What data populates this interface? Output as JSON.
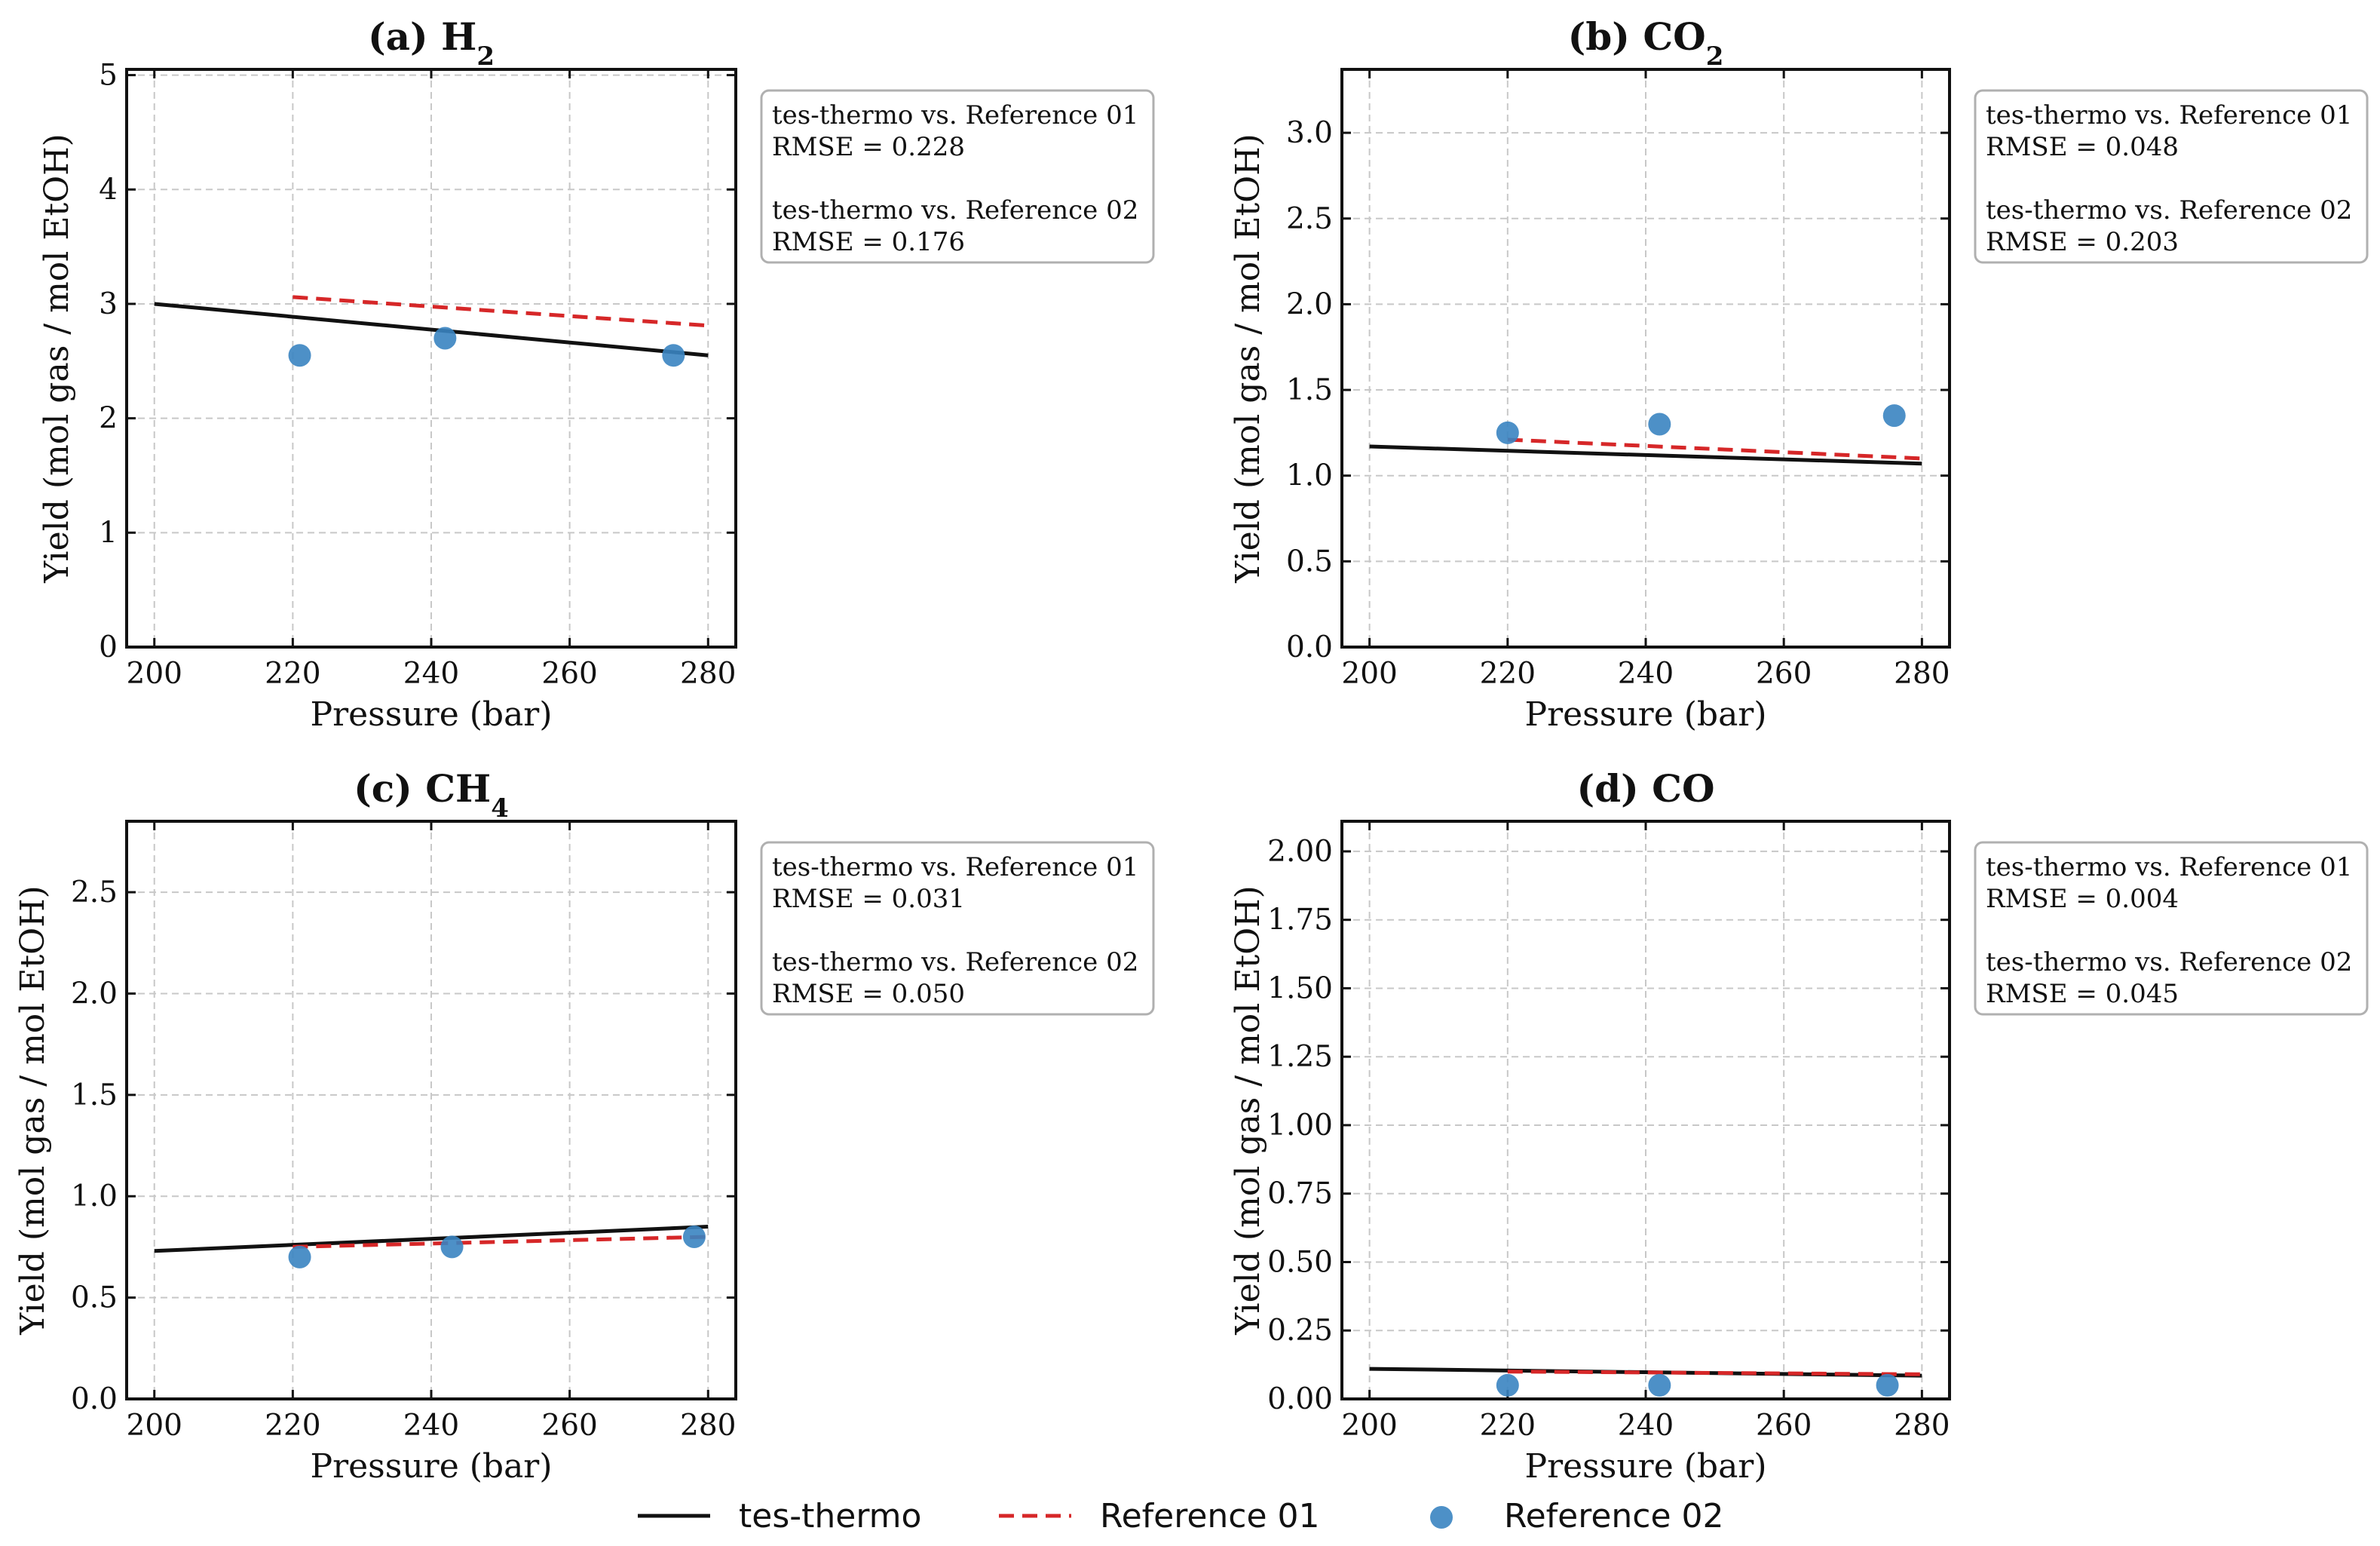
{
  "colors": {
    "model": "#111111",
    "reference_01": "#d62728",
    "reference_02": "#3a84c1",
    "grid": "#c8c8c8",
    "box_border": "#b0b0b0"
  },
  "legend": {
    "model_label": "tes-thermo",
    "ref1_label": "Reference 01",
    "ref2_label": "Reference 02"
  },
  "chart_data": [
    {
      "type": "line",
      "panel": "a",
      "title_prefix": "(a) H",
      "title_sub": "2",
      "title_suffix": "",
      "xlabel": "Pressure (bar)",
      "ylabel": "Yield (mol gas / mol EtOH)",
      "xlim": [
        196,
        284
      ],
      "ylim": [
        0,
        5.05
      ],
      "xticks": [
        200,
        220,
        240,
        260,
        280
      ],
      "yticks": [
        0,
        1,
        2,
        3,
        4,
        5
      ],
      "ytick_labels": [
        "0",
        "1",
        "2",
        "3",
        "4",
        "5"
      ],
      "grid": true,
      "series": [
        {
          "name": "tes-thermo",
          "style": "solid",
          "x": [
            200,
            280
          ],
          "y": [
            3.0,
            2.55
          ]
        },
        {
          "name": "Reference 01",
          "style": "dashed",
          "x": [
            220,
            280
          ],
          "y": [
            3.06,
            2.81
          ]
        },
        {
          "name": "Reference 02",
          "style": "scatter",
          "x": [
            221,
            242,
            275
          ],
          "y": [
            2.55,
            2.7,
            2.55
          ]
        }
      ],
      "annotation": [
        "tes-thermo vs. Reference 01",
        "RMSE = 0.228",
        "",
        "tes-thermo vs. Reference 02",
        "RMSE = 0.176"
      ]
    },
    {
      "type": "line",
      "panel": "b",
      "title_prefix": "(b) CO",
      "title_sub": "2",
      "title_suffix": "",
      "xlabel": "Pressure (bar)",
      "ylabel": "Yield (mol gas / mol EtOH)",
      "xlim": [
        196,
        284
      ],
      "ylim": [
        0,
        3.37
      ],
      "xticks": [
        200,
        220,
        240,
        260,
        280
      ],
      "yticks": [
        0,
        0.5,
        1.0,
        1.5,
        2.0,
        2.5,
        3.0
      ],
      "ytick_labels": [
        "0.0",
        "0.5",
        "1.0",
        "1.5",
        "2.0",
        "2.5",
        "3.0"
      ],
      "grid": true,
      "series": [
        {
          "name": "tes-thermo",
          "style": "solid",
          "x": [
            200,
            280
          ],
          "y": [
            1.17,
            1.07
          ]
        },
        {
          "name": "Reference 01",
          "style": "dashed",
          "x": [
            220,
            280
          ],
          "y": [
            1.21,
            1.1
          ]
        },
        {
          "name": "Reference 02",
          "style": "scatter",
          "x": [
            220,
            242,
            276
          ],
          "y": [
            1.25,
            1.3,
            1.35
          ]
        }
      ],
      "annotation": [
        "tes-thermo vs. Reference 01",
        "RMSE = 0.048",
        "",
        "tes-thermo vs. Reference 02",
        "RMSE = 0.203"
      ]
    },
    {
      "type": "line",
      "panel": "c",
      "title_prefix": "(c) CH",
      "title_sub": "4",
      "title_suffix": "",
      "xlabel": "Pressure (bar)",
      "ylabel": "Yield (mol gas / mol EtOH)",
      "xlim": [
        196,
        284
      ],
      "ylim": [
        0,
        2.85
      ],
      "xticks": [
        200,
        220,
        240,
        260,
        280
      ],
      "yticks": [
        0,
        0.5,
        1.0,
        1.5,
        2.0,
        2.5
      ],
      "ytick_labels": [
        "0.0",
        "0.5",
        "1.0",
        "1.5",
        "2.0",
        "2.5"
      ],
      "grid": true,
      "series": [
        {
          "name": "tes-thermo",
          "style": "solid",
          "x": [
            200,
            280
          ],
          "y": [
            0.73,
            0.85
          ]
        },
        {
          "name": "Reference 01",
          "style": "dashed",
          "x": [
            220,
            280
          ],
          "y": [
            0.75,
            0.8
          ]
        },
        {
          "name": "Reference 02",
          "style": "scatter",
          "x": [
            221,
            243,
            278
          ],
          "y": [
            0.7,
            0.75,
            0.8
          ]
        }
      ],
      "annotation": [
        "tes-thermo vs. Reference 01",
        "RMSE = 0.031",
        "",
        "tes-thermo vs. Reference 02",
        "RMSE = 0.050"
      ]
    },
    {
      "type": "line",
      "panel": "d",
      "title_prefix": "(d) CO",
      "title_sub": "",
      "title_suffix": "",
      "xlabel": "Pressure (bar)",
      "ylabel": "Yield (mol gas / mol EtOH)",
      "xlim": [
        196,
        284
      ],
      "ylim": [
        0,
        2.11
      ],
      "xticks": [
        200,
        220,
        240,
        260,
        280
      ],
      "yticks": [
        0,
        0.25,
        0.5,
        0.75,
        1.0,
        1.25,
        1.5,
        1.75,
        2.0
      ],
      "ytick_labels": [
        "0.00",
        "0.25",
        "0.50",
        "0.75",
        "1.00",
        "1.25",
        "1.50",
        "1.75",
        "2.00"
      ],
      "grid": true,
      "series": [
        {
          "name": "tes-thermo",
          "style": "solid",
          "x": [
            200,
            280
          ],
          "y": [
            0.11,
            0.085
          ]
        },
        {
          "name": "Reference 01",
          "style": "dashed",
          "x": [
            220,
            280
          ],
          "y": [
            0.1,
            0.09
          ]
        },
        {
          "name": "Reference 02",
          "style": "scatter",
          "x": [
            220,
            242,
            275
          ],
          "y": [
            0.05,
            0.05,
            0.05
          ]
        }
      ],
      "annotation": [
        "tes-thermo vs. Reference 01",
        "RMSE = 0.004",
        "",
        "tes-thermo vs. Reference 02",
        "RMSE = 0.045"
      ]
    }
  ]
}
